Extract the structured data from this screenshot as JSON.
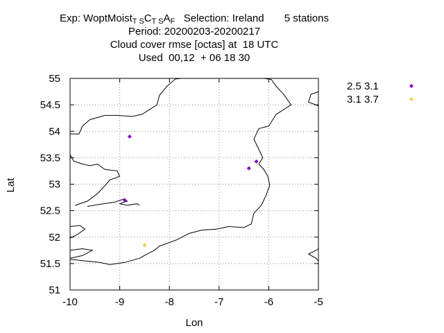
{
  "header": {
    "exp_prefix": "Exp: WoptMoist",
    "exp_sub1": "T S",
    "exp_c": "C",
    "exp_sub2": "T S",
    "exp_a": "A",
    "exp_sub3": "F",
    "selection": "   Selection: Ireland       5 stations",
    "period": "Period: 20200203-20200217",
    "parameter": "Cloud cover rmse [octas] at  18 UTC",
    "used": "Used  00,12  + 06 18 30"
  },
  "chart_data": {
    "type": "scatter",
    "xlabel": "Lon",
    "ylabel": "Lat",
    "xlim": [
      -10,
      -5
    ],
    "ylim": [
      51,
      55
    ],
    "xticks": [
      -10,
      -9,
      -8,
      -7,
      -6,
      -5
    ],
    "yticks": [
      51,
      51.5,
      52,
      52.5,
      53,
      53.5,
      54,
      54.5,
      55
    ],
    "grid": true,
    "legend_position": "outside-right",
    "series": [
      {
        "name": "2.5 3.1",
        "color": "#8b00c8",
        "points": [
          [
            -8.8,
            53.9
          ],
          [
            -8.9,
            52.7
          ],
          [
            -6.4,
            53.3
          ],
          [
            -6.25,
            53.43
          ]
        ]
      },
      {
        "name": "3.1 3.7",
        "color": "#f0d040",
        "points": [
          [
            -8.5,
            51.85
          ]
        ]
      }
    ],
    "coastline_color": "#000000"
  }
}
